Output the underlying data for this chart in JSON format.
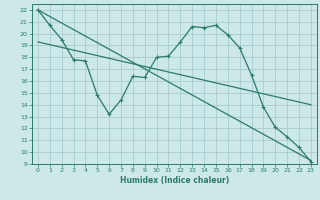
{
  "xlabel": "Humidex (Indice chaleur)",
  "ylabel": "",
  "xlim": [
    -0.5,
    23.5
  ],
  "ylim": [
    9,
    22.5
  ],
  "xticks": [
    0,
    1,
    2,
    3,
    4,
    5,
    6,
    7,
    8,
    9,
    10,
    11,
    12,
    13,
    14,
    15,
    16,
    17,
    18,
    19,
    20,
    21,
    22,
    23
  ],
  "yticks": [
    9,
    10,
    11,
    12,
    13,
    14,
    15,
    16,
    17,
    18,
    19,
    20,
    21,
    22
  ],
  "background_color": "#cce8e8",
  "grid_color": "#aacccc",
  "line_color": "#2b7a6a",
  "line1_x": [
    0,
    1,
    2,
    3,
    4,
    5,
    6,
    7,
    8,
    9,
    10,
    11,
    12,
    13,
    14,
    15,
    16,
    17,
    18,
    19,
    20,
    21,
    22,
    23
  ],
  "line1_y": [
    22,
    20.7,
    19.5,
    17.8,
    17.7,
    14.8,
    13.2,
    14.4,
    16.4,
    16.3,
    18.0,
    18.1,
    19.3,
    20.6,
    20.5,
    20.7,
    19.9,
    18.8,
    16.5,
    13.8,
    12.1,
    11.3,
    10.4,
    9.2
  ],
  "line2_x": [
    0,
    23
  ],
  "line2_y": [
    22.0,
    9.3
  ],
  "line3_x": [
    0,
    23
  ],
  "line3_y": [
    19.3,
    14.0
  ]
}
